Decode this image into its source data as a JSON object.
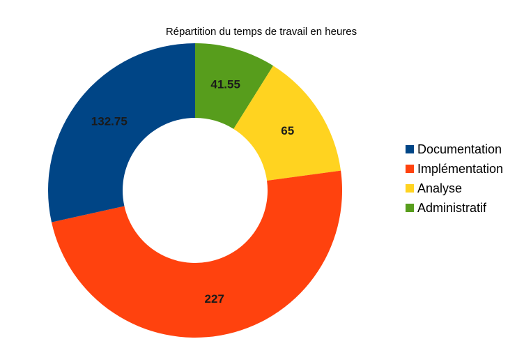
{
  "chart_data": {
    "type": "pie",
    "variant": "donut",
    "title": "Répartition du temps de travail en heures",
    "categories": [
      "Administratif",
      "Analyse",
      "Implémentation",
      "Documentation"
    ],
    "values": [
      41.55,
      65,
      227,
      132.75
    ],
    "value_labels": [
      "41.55",
      "65",
      "227",
      "132.75"
    ],
    "colors": [
      "#579d1c",
      "#ffd320",
      "#ff420e",
      "#004586"
    ],
    "legend": {
      "position": "right",
      "items": [
        {
          "label": "Documentation",
          "color": "#004586"
        },
        {
          "label": "Implémentation",
          "color": "#ff420e"
        },
        {
          "label": "Analyse",
          "color": "#ffd320"
        },
        {
          "label": "Administratif",
          "color": "#579d1c"
        }
      ]
    }
  }
}
